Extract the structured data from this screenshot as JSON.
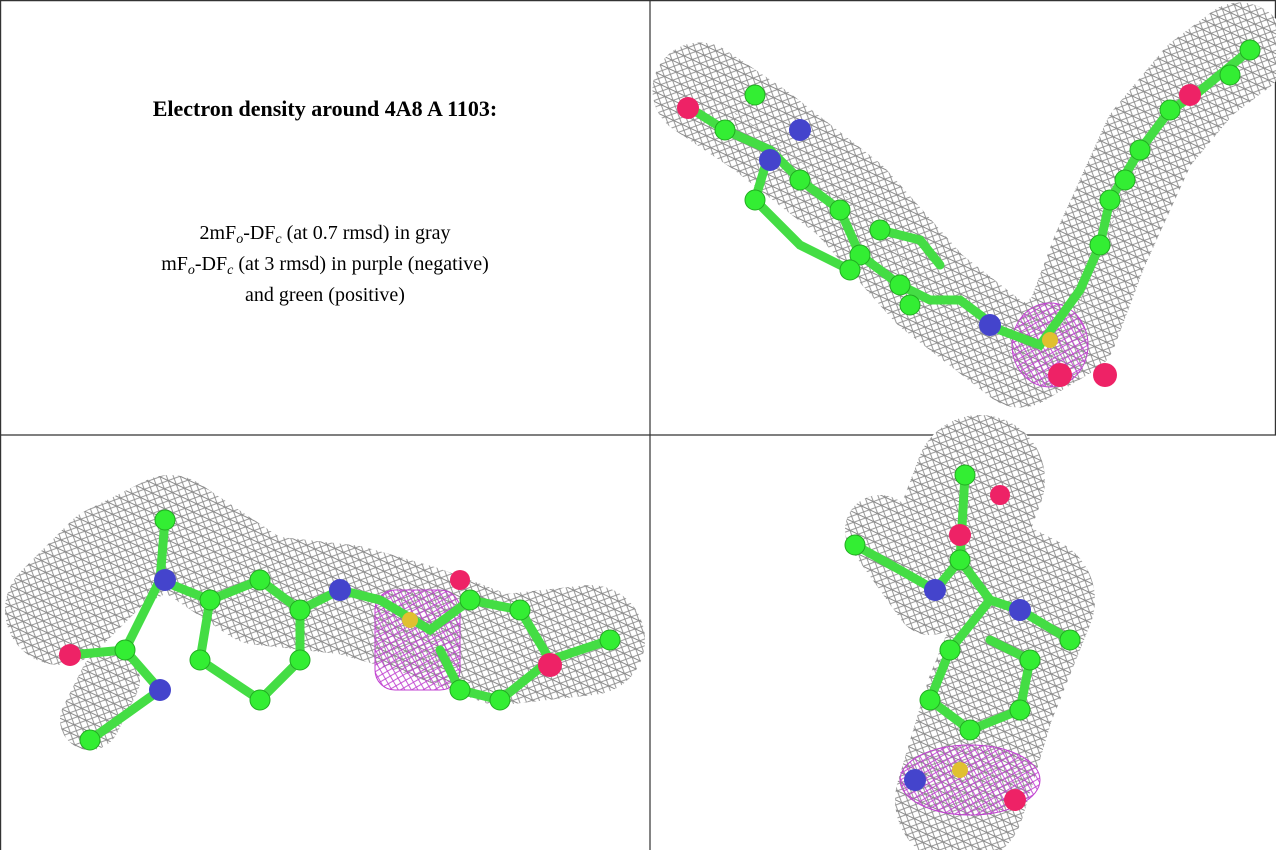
{
  "title": "Electron density around 4A8 A 1103:",
  "caption": {
    "line1": [
      "2mF",
      "o",
      "-DF",
      "c",
      " (at 0.7 rmsd) in gray"
    ],
    "line2": [
      "mF",
      "o",
      "-DF",
      "c",
      " (at 3 rmsd) in purple (negative)"
    ],
    "line3": "and green (positive)"
  }
}
